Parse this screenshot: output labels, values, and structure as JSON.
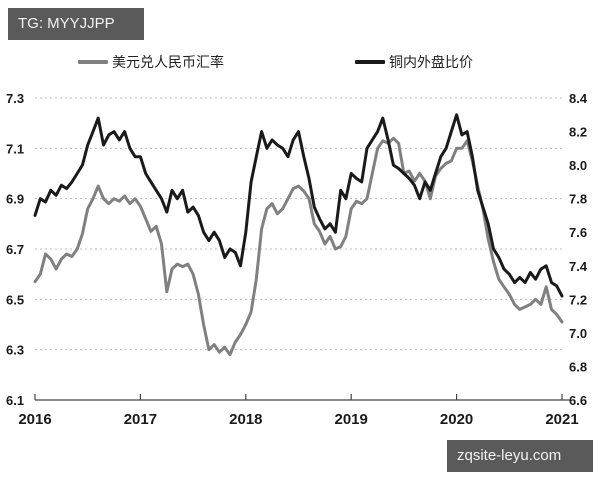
{
  "watermarks": {
    "top_left": "TG: MYYJJPP",
    "bottom_right": "zqsite-leyu.com"
  },
  "legend": [
    {
      "label": "美元兑人民币汇率",
      "color": "#808080"
    },
    {
      "label": "铜内外盘比价",
      "color": "#1a1a1a"
    }
  ],
  "chart_data": {
    "type": "line",
    "title": "",
    "xlabel": "",
    "ylabel_left": "",
    "ylabel_right": "",
    "x_ticks": [
      "2016",
      "2017",
      "2018",
      "2019",
      "2020",
      "2021"
    ],
    "x_range": [
      2016.0,
      2021.0
    ],
    "y_left_ticks": [
      "7.3",
      "7.1",
      "6.9",
      "6.7",
      "6.5",
      "6.3",
      "6.1"
    ],
    "y_left_range": [
      6.1,
      7.3
    ],
    "y_right_ticks": [
      "8.4",
      "8.2",
      "8.0",
      "7.8",
      "7.6",
      "7.4",
      "7.2",
      "7.0",
      "6.8",
      "6.6"
    ],
    "y_right_range": [
      6.6,
      8.4
    ],
    "grid": "horizontal dotted",
    "legend_position": "top",
    "series": [
      {
        "name": "美元兑人民币汇率",
        "axis": "left",
        "color": "#808080",
        "x": [
          2016.0,
          2016.05,
          2016.1,
          2016.15,
          2016.2,
          2016.25,
          2016.3,
          2016.35,
          2016.4,
          2016.45,
          2016.5,
          2016.55,
          2016.6,
          2016.65,
          2016.7,
          2016.75,
          2016.8,
          2016.85,
          2016.9,
          2016.95,
          2017.0,
          2017.05,
          2017.1,
          2017.15,
          2017.2,
          2017.25,
          2017.3,
          2017.35,
          2017.4,
          2017.45,
          2017.5,
          2017.55,
          2017.6,
          2017.65,
          2017.7,
          2017.75,
          2017.8,
          2017.85,
          2017.9,
          2017.95,
          2018.0,
          2018.05,
          2018.1,
          2018.15,
          2018.2,
          2018.25,
          2018.3,
          2018.35,
          2018.4,
          2018.45,
          2018.5,
          2018.55,
          2018.6,
          2018.65,
          2018.7,
          2018.75,
          2018.8,
          2018.85,
          2018.9,
          2018.95,
          2019.0,
          2019.05,
          2019.1,
          2019.15,
          2019.2,
          2019.25,
          2019.3,
          2019.35,
          2019.4,
          2019.45,
          2019.5,
          2019.55,
          2019.6,
          2019.65,
          2019.7,
          2019.75,
          2019.8,
          2019.85,
          2019.9,
          2019.95,
          2020.0,
          2020.05,
          2020.1,
          2020.15,
          2020.2,
          2020.25,
          2020.3,
          2020.35,
          2020.4,
          2020.45,
          2020.5,
          2020.55,
          2020.6,
          2020.65,
          2020.7,
          2020.75,
          2020.8,
          2020.85,
          2020.9,
          2020.95,
          2021.0
        ],
        "values": [
          6.57,
          6.6,
          6.68,
          6.66,
          6.62,
          6.66,
          6.68,
          6.67,
          6.7,
          6.76,
          6.86,
          6.9,
          6.95,
          6.9,
          6.88,
          6.9,
          6.89,
          6.91,
          6.88,
          6.9,
          6.87,
          6.82,
          6.77,
          6.79,
          6.72,
          6.53,
          6.62,
          6.64,
          6.63,
          6.64,
          6.6,
          6.52,
          6.4,
          6.3,
          6.32,
          6.29,
          6.31,
          6.28,
          6.33,
          6.36,
          6.4,
          6.45,
          6.58,
          6.78,
          6.86,
          6.88,
          6.84,
          6.86,
          6.9,
          6.94,
          6.95,
          6.93,
          6.9,
          6.8,
          6.77,
          6.72,
          6.75,
          6.7,
          6.71,
          6.75,
          6.86,
          6.89,
          6.88,
          6.9,
          7.0,
          7.1,
          7.13,
          7.12,
          7.14,
          7.12,
          7.0,
          7.01,
          6.97,
          7.0,
          6.97,
          6.9,
          6.99,
          7.02,
          7.04,
          7.05,
          7.1,
          7.1,
          7.13,
          7.05,
          6.95,
          6.86,
          6.74,
          6.65,
          6.58,
          6.55,
          6.52,
          6.48,
          6.46,
          6.47,
          6.48,
          6.5,
          6.48,
          6.55,
          6.46,
          6.44,
          6.41
        ]
      },
      {
        "name": "铜内外盘比价",
        "axis": "right",
        "color": "#1a1a1a",
        "x": [
          2016.0,
          2016.05,
          2016.1,
          2016.15,
          2016.2,
          2016.25,
          2016.3,
          2016.35,
          2016.4,
          2016.45,
          2016.5,
          2016.55,
          2016.6,
          2016.65,
          2016.7,
          2016.75,
          2016.8,
          2016.85,
          2016.9,
          2016.95,
          2017.0,
          2017.05,
          2017.1,
          2017.15,
          2017.2,
          2017.25,
          2017.3,
          2017.35,
          2017.4,
          2017.45,
          2017.5,
          2017.55,
          2017.6,
          2017.65,
          2017.7,
          2017.75,
          2017.8,
          2017.85,
          2017.9,
          2017.95,
          2018.0,
          2018.05,
          2018.1,
          2018.15,
          2018.2,
          2018.25,
          2018.3,
          2018.35,
          2018.4,
          2018.45,
          2018.5,
          2018.55,
          2018.6,
          2018.65,
          2018.7,
          2018.75,
          2018.8,
          2018.85,
          2018.9,
          2018.95,
          2019.0,
          2019.05,
          2019.1,
          2019.15,
          2019.2,
          2019.25,
          2019.3,
          2019.35,
          2019.4,
          2019.45,
          2019.5,
          2019.55,
          2019.6,
          2019.65,
          2019.7,
          2019.75,
          2019.8,
          2019.85,
          2019.9,
          2019.95,
          2020.0,
          2020.05,
          2020.1,
          2020.15,
          2020.2,
          2020.25,
          2020.3,
          2020.35,
          2020.4,
          2020.45,
          2020.5,
          2020.55,
          2020.6,
          2020.65,
          2020.7,
          2020.75,
          2020.8,
          2020.85,
          2020.9,
          2020.95,
          2021.0
        ],
        "values": [
          7.7,
          7.8,
          7.78,
          7.85,
          7.82,
          7.88,
          7.86,
          7.9,
          7.95,
          8.0,
          8.12,
          8.2,
          8.28,
          8.12,
          8.18,
          8.2,
          8.15,
          8.2,
          8.1,
          8.05,
          8.05,
          7.95,
          7.9,
          7.85,
          7.8,
          7.72,
          7.85,
          7.8,
          7.85,
          7.72,
          7.75,
          7.7,
          7.6,
          7.55,
          7.6,
          7.55,
          7.45,
          7.5,
          7.48,
          7.4,
          7.6,
          7.9,
          8.05,
          8.2,
          8.1,
          8.15,
          8.12,
          8.1,
          8.05,
          8.15,
          8.2,
          8.05,
          7.92,
          7.75,
          7.68,
          7.62,
          7.65,
          7.6,
          7.85,
          7.8,
          7.95,
          7.92,
          7.9,
          8.1,
          8.15,
          8.2,
          8.28,
          8.15,
          8.0,
          7.98,
          7.95,
          7.92,
          7.88,
          7.8,
          7.9,
          7.85,
          7.95,
          8.05,
          8.1,
          8.2,
          8.3,
          8.18,
          8.2,
          8.05,
          7.85,
          7.75,
          7.65,
          7.5,
          7.45,
          7.38,
          7.35,
          7.3,
          7.33,
          7.3,
          7.36,
          7.32,
          7.38,
          7.4,
          7.3,
          7.28,
          7.22
        ]
      }
    ]
  }
}
